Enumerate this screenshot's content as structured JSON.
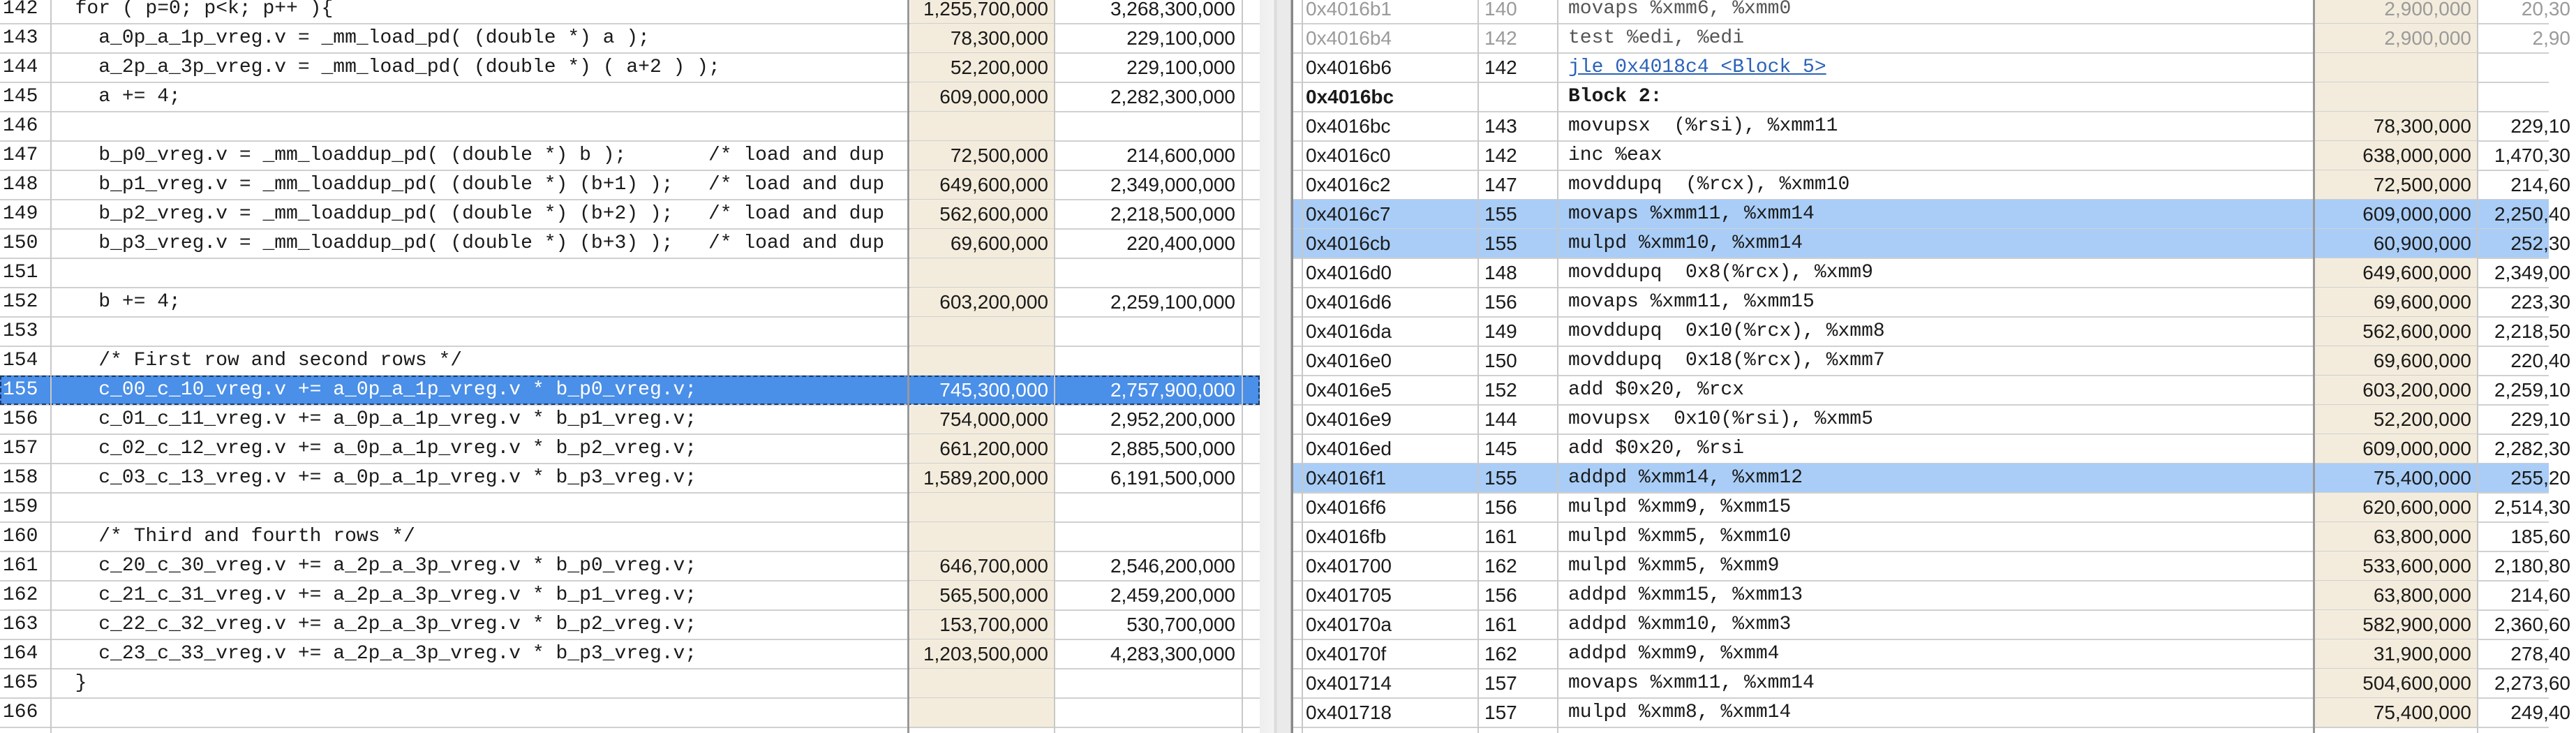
{
  "left": {
    "rows": [
      {
        "line": "142",
        "src": "  for ( p=0; p<k; p++ ){",
        "s1": "1,255,700,000",
        "s2": "3,268,300,000"
      },
      {
        "line": "143",
        "src": "    a_0p_a_1p_vreg.v = _mm_load_pd( (double *) a );",
        "s1": "78,300,000",
        "s2": "229,100,000"
      },
      {
        "line": "144",
        "src": "    a_2p_a_3p_vreg.v = _mm_load_pd( (double *) ( a+2 ) );",
        "s1": "52,200,000",
        "s2": "229,100,000"
      },
      {
        "line": "145",
        "src": "    a += 4;",
        "s1": "609,000,000",
        "s2": "2,282,300,000"
      },
      {
        "line": "146",
        "src": "",
        "s1": "",
        "s2": ""
      },
      {
        "line": "147",
        "src": "    b_p0_vreg.v = _mm_loaddup_pd( (double *) b );       /* load and dup",
        "s1": "72,500,000",
        "s2": "214,600,000"
      },
      {
        "line": "148",
        "src": "    b_p1_vreg.v = _mm_loaddup_pd( (double *) (b+1) );   /* load and dup",
        "s1": "649,600,000",
        "s2": "2,349,000,000"
      },
      {
        "line": "149",
        "src": "    b_p2_vreg.v = _mm_loaddup_pd( (double *) (b+2) );   /* load and dup",
        "s1": "562,600,000",
        "s2": "2,218,500,000"
      },
      {
        "line": "150",
        "src": "    b_p3_vreg.v = _mm_loaddup_pd( (double *) (b+3) );   /* load and dup",
        "s1": "69,600,000",
        "s2": "220,400,000"
      },
      {
        "line": "151",
        "src": "",
        "s1": "",
        "s2": ""
      },
      {
        "line": "152",
        "src": "    b += 4;",
        "s1": "603,200,000",
        "s2": "2,259,100,000"
      },
      {
        "line": "153",
        "src": "",
        "s1": "",
        "s2": ""
      },
      {
        "line": "154",
        "src": "    /* First row and second rows */",
        "s1": "",
        "s2": ""
      },
      {
        "line": "155",
        "src": "    c_00_c_10_vreg.v += a_0p_a_1p_vreg.v * b_p0_vreg.v;",
        "s1": "745,300,000",
        "s2": "2,757,900,000"
      },
      {
        "line": "156",
        "src": "    c_01_c_11_vreg.v += a_0p_a_1p_vreg.v * b_p1_vreg.v;",
        "s1": "754,000,000",
        "s2": "2,952,200,000"
      },
      {
        "line": "157",
        "src": "    c_02_c_12_vreg.v += a_0p_a_1p_vreg.v * b_p2_vreg.v;",
        "s1": "661,200,000",
        "s2": "2,885,500,000"
      },
      {
        "line": "158",
        "src": "    c_03_c_13_vreg.v += a_0p_a_1p_vreg.v * b_p3_vreg.v;",
        "s1": "1,589,200,000",
        "s2": "6,191,500,000"
      },
      {
        "line": "159",
        "src": "",
        "s1": "",
        "s2": ""
      },
      {
        "line": "160",
        "src": "    /* Third and fourth rows */",
        "s1": "",
        "s2": ""
      },
      {
        "line": "161",
        "src": "    c_20_c_30_vreg.v += a_2p_a_3p_vreg.v * b_p0_vreg.v;",
        "s1": "646,700,000",
        "s2": "2,546,200,000"
      },
      {
        "line": "162",
        "src": "    c_21_c_31_vreg.v += a_2p_a_3p_vreg.v * b_p1_vreg.v;",
        "s1": "565,500,000",
        "s2": "2,459,200,000"
      },
      {
        "line": "163",
        "src": "    c_22_c_32_vreg.v += a_2p_a_3p_vreg.v * b_p2_vreg.v;",
        "s1": "153,700,000",
        "s2": "530,700,000"
      },
      {
        "line": "164",
        "src": "    c_23_c_33_vreg.v += a_2p_a_3p_vreg.v * b_p3_vreg.v;",
        "s1": "1,203,500,000",
        "s2": "4,283,300,000"
      },
      {
        "line": "165",
        "src": "  }",
        "s1": "",
        "s2": ""
      },
      {
        "line": "166",
        "src": "",
        "s1": "",
        "s2": ""
      }
    ],
    "selected_line": "155"
  },
  "right": {
    "rows": [
      {
        "addr": "0x4016b1",
        "line": "140",
        "asm": "movaps %xmm6, %xmm0",
        "s1": "2,900,000",
        "s2": "20,30",
        "state": "faded"
      },
      {
        "addr": "0x4016b4",
        "line": "142",
        "asm": "test %edi, %edi",
        "s1": "2,900,000",
        "s2": "2,90",
        "state": "faded"
      },
      {
        "addr": "0x4016b6",
        "line": "142",
        "asm": "jle 0x4018c4 <Block 5>",
        "s1": "",
        "s2": "",
        "state": "link"
      },
      {
        "addr": "0x4016bc",
        "line": "",
        "asm": "Block 2:",
        "s1": "",
        "s2": "",
        "state": "block"
      },
      {
        "addr": "0x4016bc",
        "line": "143",
        "asm": "movupsx  (%rsi), %xmm11",
        "s1": "78,300,000",
        "s2": "229,10",
        "state": ""
      },
      {
        "addr": "0x4016c0",
        "line": "142",
        "asm": "inc %eax",
        "s1": "638,000,000",
        "s2": "1,470,30",
        "state": ""
      },
      {
        "addr": "0x4016c2",
        "line": "147",
        "asm": "movddupq  (%rcx), %xmm10",
        "s1": "72,500,000",
        "s2": "214,60",
        "state": ""
      },
      {
        "addr": "0x4016c7",
        "line": "155",
        "asm": "movaps %xmm11, %xmm14",
        "s1": "609,000,000",
        "s2": "2,250,40",
        "state": "sel"
      },
      {
        "addr": "0x4016cb",
        "line": "155",
        "asm": "mulpd %xmm10, %xmm14",
        "s1": "60,900,000",
        "s2": "252,30",
        "state": "sel"
      },
      {
        "addr": "0x4016d0",
        "line": "148",
        "asm": "movddupq  0x8(%rcx), %xmm9",
        "s1": "649,600,000",
        "s2": "2,349,00",
        "state": ""
      },
      {
        "addr": "0x4016d6",
        "line": "156",
        "asm": "movaps %xmm11, %xmm15",
        "s1": "69,600,000",
        "s2": "223,30",
        "state": ""
      },
      {
        "addr": "0x4016da",
        "line": "149",
        "asm": "movddupq  0x10(%rcx), %xmm8",
        "s1": "562,600,000",
        "s2": "2,218,50",
        "state": ""
      },
      {
        "addr": "0x4016e0",
        "line": "150",
        "asm": "movddupq  0x18(%rcx), %xmm7",
        "s1": "69,600,000",
        "s2": "220,40",
        "state": ""
      },
      {
        "addr": "0x4016e5",
        "line": "152",
        "asm": "add $0x20, %rcx",
        "s1": "603,200,000",
        "s2": "2,259,10",
        "state": ""
      },
      {
        "addr": "0x4016e9",
        "line": "144",
        "asm": "movupsx  0x10(%rsi), %xmm5",
        "s1": "52,200,000",
        "s2": "229,10",
        "state": ""
      },
      {
        "addr": "0x4016ed",
        "line": "145",
        "asm": "add $0x20, %rsi",
        "s1": "609,000,000",
        "s2": "2,282,30",
        "state": ""
      },
      {
        "addr": "0x4016f1",
        "line": "155",
        "asm": "addpd %xmm14, %xmm12",
        "s1": "75,400,000",
        "s2": "255,20",
        "state": "sel"
      },
      {
        "addr": "0x4016f6",
        "line": "156",
        "asm": "mulpd %xmm9, %xmm15",
        "s1": "620,600,000",
        "s2": "2,514,30",
        "state": ""
      },
      {
        "addr": "0x4016fb",
        "line": "161",
        "asm": "mulpd %xmm5, %xmm10",
        "s1": "63,800,000",
        "s2": "185,60",
        "state": ""
      },
      {
        "addr": "0x401700",
        "line": "162",
        "asm": "mulpd %xmm5, %xmm9",
        "s1": "533,600,000",
        "s2": "2,180,80",
        "state": ""
      },
      {
        "addr": "0x401705",
        "line": "156",
        "asm": "addpd %xmm15, %xmm13",
        "s1": "63,800,000",
        "s2": "214,60",
        "state": ""
      },
      {
        "addr": "0x40170a",
        "line": "161",
        "asm": "addpd %xmm10, %xmm3",
        "s1": "582,900,000",
        "s2": "2,360,60",
        "state": ""
      },
      {
        "addr": "0x40170f",
        "line": "162",
        "asm": "addpd %xmm9, %xmm4",
        "s1": "31,900,000",
        "s2": "278,40",
        "state": ""
      },
      {
        "addr": "0x401714",
        "line": "157",
        "asm": "movaps %xmm11, %xmm14",
        "s1": "504,600,000",
        "s2": "2,273,60",
        "state": ""
      },
      {
        "addr": "0x401718",
        "line": "157",
        "asm": "mulpd %xmm8, %xmm14",
        "s1": "75,400,000",
        "s2": "249,40",
        "state": ""
      }
    ]
  }
}
